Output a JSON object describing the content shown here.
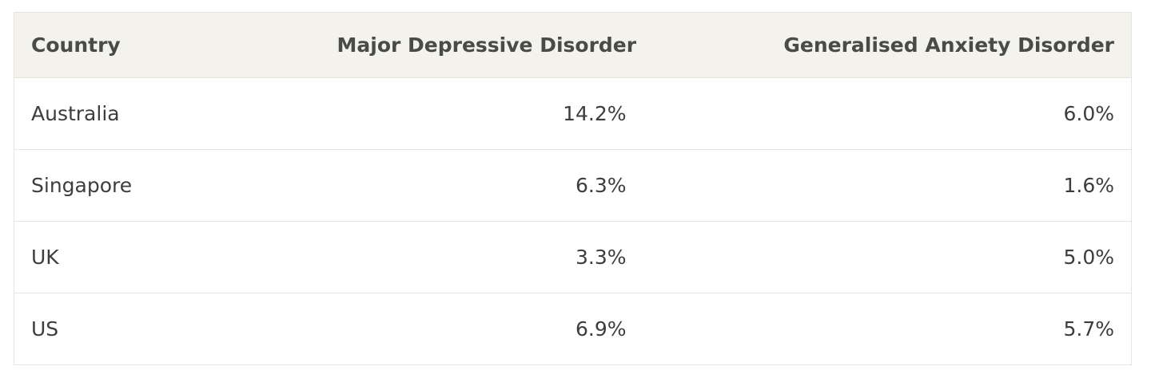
{
  "table": {
    "header": [
      "Country",
      "Major Depressive Disorder",
      "Generalised Anxiety Disorder"
    ],
    "rows": [
      [
        "Australia",
        "14.2%",
        "6.0%"
      ],
      [
        "Singapore",
        "6.3%",
        "1.6%"
      ],
      [
        "UK",
        "3.3%",
        "5.0%"
      ],
      [
        "US",
        "6.9%",
        "5.7%"
      ]
    ]
  }
}
